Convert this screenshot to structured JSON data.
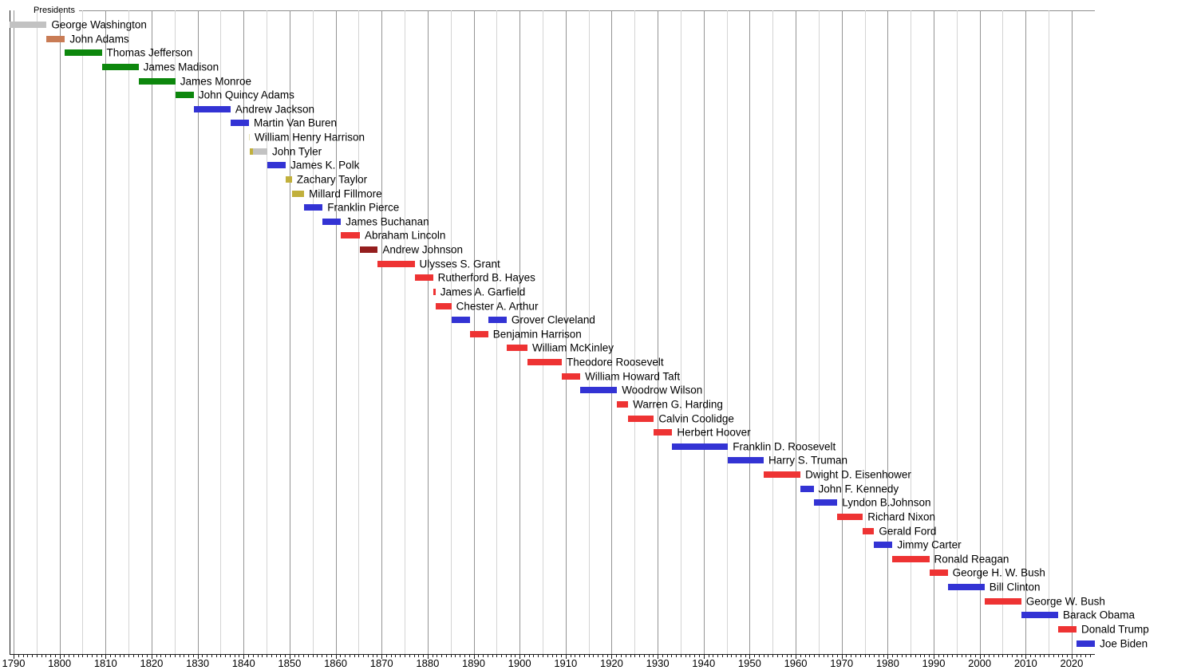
{
  "chart_data": {
    "type": "bar",
    "subtype": "gantt-timeline",
    "title": "Presidents",
    "xlabel": "",
    "ylabel": "",
    "xlim": [
      1789.1,
      2025.2
    ],
    "grid": {
      "major": "every 10 years",
      "minor": "every 5 years",
      "vertical": true
    },
    "legend_position": "none",
    "x_ticks": [
      1790,
      1800,
      1810,
      1820,
      1830,
      1840,
      1850,
      1860,
      1870,
      1880,
      1890,
      1900,
      1910,
      1920,
      1930,
      1940,
      1950,
      1960,
      1970,
      1980,
      1990,
      2000,
      2010,
      2020
    ],
    "colors": {
      "silver": "#c2c2c2",
      "salmon": "#c97c55",
      "green": "#0d870d",
      "blue": "#3333d4",
      "khaki": "#c1b03c",
      "pale_khaki": "#e6e2b4",
      "red": "#ee3333",
      "dark_red": "#941e1e"
    },
    "rows": [
      {
        "name": "George Washington",
        "terms": [
          {
            "start": 1789.17,
            "end": 1797.17,
            "color": "silver"
          }
        ]
      },
      {
        "name": "John Adams",
        "terms": [
          {
            "start": 1797.17,
            "end": 1801.17,
            "color": "salmon"
          }
        ]
      },
      {
        "name": "Thomas Jefferson",
        "terms": [
          {
            "start": 1801.17,
            "end": 1809.17,
            "color": "green"
          }
        ]
      },
      {
        "name": "James Madison",
        "terms": [
          {
            "start": 1809.17,
            "end": 1817.17,
            "color": "green"
          }
        ]
      },
      {
        "name": "James Monroe",
        "terms": [
          {
            "start": 1817.17,
            "end": 1825.17,
            "color": "green"
          }
        ]
      },
      {
        "name": "John Quincy Adams",
        "terms": [
          {
            "start": 1825.17,
            "end": 1829.17,
            "color": "green"
          }
        ]
      },
      {
        "name": "Andrew Jackson",
        "terms": [
          {
            "start": 1829.17,
            "end": 1837.17,
            "color": "blue"
          }
        ]
      },
      {
        "name": "Martin Van Buren",
        "terms": [
          {
            "start": 1837.17,
            "end": 1841.17,
            "color": "blue"
          }
        ]
      },
      {
        "name": "William Henry Harrison",
        "terms": [
          {
            "start": 1841.17,
            "end": 1841.26,
            "color": "pale_khaki"
          }
        ]
      },
      {
        "name": "John Tyler",
        "terms": [
          {
            "start": 1841.26,
            "end": 1842.0,
            "color": "khaki"
          },
          {
            "start": 1842.0,
            "end": 1845.17,
            "color": "silver"
          }
        ]
      },
      {
        "name": "James K. Polk",
        "terms": [
          {
            "start": 1845.17,
            "end": 1849.17,
            "color": "blue"
          }
        ]
      },
      {
        "name": "Zachary Taylor",
        "terms": [
          {
            "start": 1849.17,
            "end": 1850.52,
            "color": "khaki"
          }
        ]
      },
      {
        "name": "Millard Fillmore",
        "terms": [
          {
            "start": 1850.52,
            "end": 1853.17,
            "color": "khaki"
          }
        ]
      },
      {
        "name": "Franklin Pierce",
        "terms": [
          {
            "start": 1853.17,
            "end": 1857.17,
            "color": "blue"
          }
        ]
      },
      {
        "name": "James Buchanan",
        "terms": [
          {
            "start": 1857.17,
            "end": 1861.17,
            "color": "blue"
          }
        ]
      },
      {
        "name": "Abraham Lincoln",
        "terms": [
          {
            "start": 1861.17,
            "end": 1865.29,
            "color": "red"
          }
        ]
      },
      {
        "name": "Andrew Johnson",
        "terms": [
          {
            "start": 1865.29,
            "end": 1869.17,
            "color": "dark_red"
          }
        ]
      },
      {
        "name": "Ulysses S. Grant",
        "terms": [
          {
            "start": 1869.17,
            "end": 1877.17,
            "color": "red"
          }
        ]
      },
      {
        "name": "Rutherford B. Hayes",
        "terms": [
          {
            "start": 1877.17,
            "end": 1881.17,
            "color": "red"
          }
        ]
      },
      {
        "name": "James A. Garfield",
        "terms": [
          {
            "start": 1881.17,
            "end": 1881.72,
            "color": "red"
          }
        ]
      },
      {
        "name": "Chester A. Arthur",
        "terms": [
          {
            "start": 1881.72,
            "end": 1885.17,
            "color": "red"
          }
        ]
      },
      {
        "name": "Grover Cleveland",
        "terms": [
          {
            "start": 1885.17,
            "end": 1889.17,
            "color": "blue"
          },
          {
            "start": 1893.17,
            "end": 1897.17,
            "color": "blue"
          }
        ]
      },
      {
        "name": "Benjamin Harrison",
        "terms": [
          {
            "start": 1889.17,
            "end": 1893.17,
            "color": "red"
          }
        ]
      },
      {
        "name": "William McKinley",
        "terms": [
          {
            "start": 1897.17,
            "end": 1901.7,
            "color": "red"
          }
        ]
      },
      {
        "name": "Theodore Roosevelt",
        "terms": [
          {
            "start": 1901.7,
            "end": 1909.17,
            "color": "red"
          }
        ]
      },
      {
        "name": "William Howard Taft",
        "terms": [
          {
            "start": 1909.17,
            "end": 1913.17,
            "color": "red"
          }
        ]
      },
      {
        "name": "Woodrow Wilson",
        "terms": [
          {
            "start": 1913.17,
            "end": 1921.17,
            "color": "blue"
          }
        ]
      },
      {
        "name": "Warren G. Harding",
        "terms": [
          {
            "start": 1921.17,
            "end": 1923.59,
            "color": "red"
          }
        ]
      },
      {
        "name": "Calvin Coolidge",
        "terms": [
          {
            "start": 1923.59,
            "end": 1929.17,
            "color": "red"
          }
        ]
      },
      {
        "name": "Herbert Hoover",
        "terms": [
          {
            "start": 1929.17,
            "end": 1933.17,
            "color": "red"
          }
        ]
      },
      {
        "name": "Franklin D. Roosevelt",
        "terms": [
          {
            "start": 1933.17,
            "end": 1945.29,
            "color": "blue"
          }
        ]
      },
      {
        "name": "Harry S. Truman",
        "terms": [
          {
            "start": 1945.29,
            "end": 1953.05,
            "color": "blue"
          }
        ]
      },
      {
        "name": "Dwight D. Eisenhower",
        "terms": [
          {
            "start": 1953.05,
            "end": 1961.05,
            "color": "red"
          }
        ]
      },
      {
        "name": "John F. Kennedy",
        "terms": [
          {
            "start": 1961.05,
            "end": 1963.9,
            "color": "blue"
          }
        ]
      },
      {
        "name": "Lyndon B.Johnson",
        "terms": [
          {
            "start": 1963.9,
            "end": 1969.05,
            "color": "blue"
          }
        ]
      },
      {
        "name": "Richard Nixon",
        "terms": [
          {
            "start": 1969.05,
            "end": 1974.6,
            "color": "red"
          }
        ]
      },
      {
        "name": "Gerald Ford",
        "terms": [
          {
            "start": 1974.6,
            "end": 1977.05,
            "color": "red"
          }
        ]
      },
      {
        "name": "Jimmy Carter",
        "terms": [
          {
            "start": 1977.05,
            "end": 1981.05,
            "color": "blue"
          }
        ]
      },
      {
        "name": "Ronald Reagan",
        "terms": [
          {
            "start": 1981.05,
            "end": 1989.05,
            "color": "red"
          }
        ]
      },
      {
        "name": "George H. W. Bush",
        "terms": [
          {
            "start": 1989.05,
            "end": 1993.05,
            "color": "red"
          }
        ]
      },
      {
        "name": "Bill Clinton",
        "terms": [
          {
            "start": 1993.05,
            "end": 2001.05,
            "color": "blue"
          }
        ]
      },
      {
        "name": "George W. Bush",
        "terms": [
          {
            "start": 2001.05,
            "end": 2009.05,
            "color": "red"
          }
        ]
      },
      {
        "name": "Barack Obama",
        "terms": [
          {
            "start": 2009.05,
            "end": 2017.05,
            "color": "blue"
          }
        ]
      },
      {
        "name": "Donald Trump",
        "terms": [
          {
            "start": 2017.05,
            "end": 2021.05,
            "color": "red"
          }
        ]
      },
      {
        "name": "Joe Biden",
        "terms": [
          {
            "start": 2021.05,
            "end": 2025.05,
            "color": "blue"
          }
        ]
      }
    ]
  }
}
